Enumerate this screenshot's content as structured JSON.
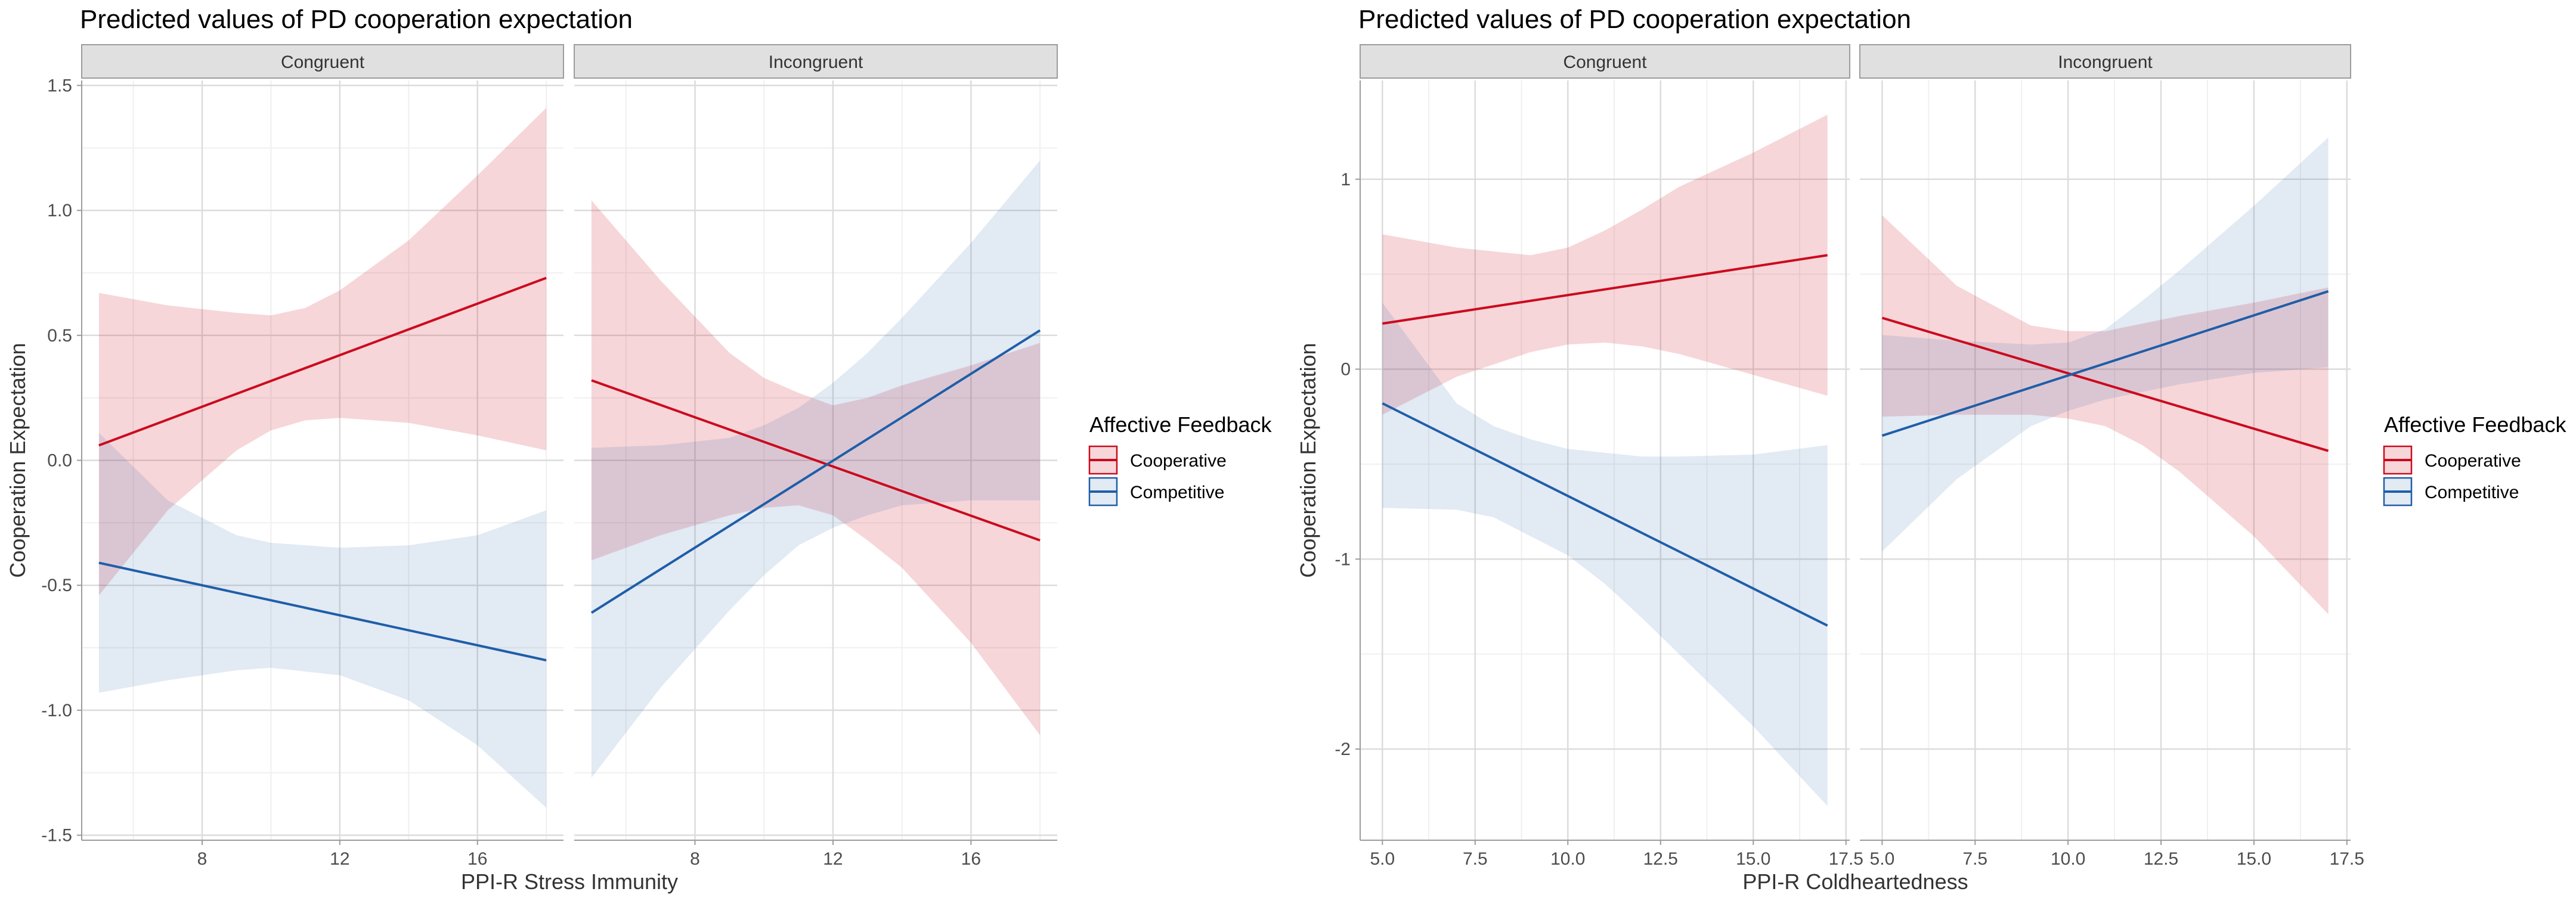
{
  "chart_data": [
    {
      "type": "line",
      "title": "Predicted values of PD cooperation expectation",
      "xlabel": "PPI-R Stress Immunity",
      "ylabel": "Cooperation Expectation",
      "xlim": [
        4.5,
        18.5
      ],
      "ylim": [
        -1.52,
        1.52
      ],
      "xticks": [
        8,
        12,
        16
      ],
      "xtick_labels": [
        "8",
        "12",
        "16"
      ],
      "yticks": [
        -1.5,
        -1.0,
        -0.5,
        0.0,
        0.5,
        1.0,
        1.5
      ],
      "ytick_labels": [
        "-1.5",
        "-1.0",
        "-0.5",
        "0.0",
        "0.5",
        "1.0",
        "1.5"
      ],
      "grid": true,
      "legend": {
        "title": "Affective Feedback",
        "position": "right",
        "entries": [
          "Cooperative",
          "Competitive"
        ]
      },
      "facets": [
        {
          "label": "Congruent",
          "series": [
            {
              "name": "Cooperative",
              "color": "#CC0A1E",
              "x": [
                5,
                18
              ],
              "y": [
                0.06,
                0.73
              ],
              "ci_x": [
                5,
                7,
                9,
                10,
                11,
                12,
                14,
                16,
                18
              ],
              "ci_upper": [
                0.67,
                0.62,
                0.59,
                0.58,
                0.61,
                0.68,
                0.88,
                1.14,
                1.41
              ],
              "ci_lower": [
                -0.54,
                -0.2,
                0.04,
                0.12,
                0.16,
                0.17,
                0.15,
                0.1,
                0.04
              ]
            },
            {
              "name": "Competitive",
              "color": "#1F5EA8",
              "x": [
                5,
                18
              ],
              "y": [
                -0.41,
                -0.8
              ],
              "ci_x": [
                5,
                7,
                9,
                10,
                12,
                14,
                16,
                18
              ],
              "ci_upper": [
                0.11,
                -0.16,
                -0.3,
                -0.33,
                -0.35,
                -0.34,
                -0.3,
                -0.2
              ],
              "ci_lower": [
                -0.93,
                -0.88,
                -0.84,
                -0.83,
                -0.86,
                -0.96,
                -1.14,
                -1.39
              ]
            }
          ]
        },
        {
          "label": "Incongruent",
          "series": [
            {
              "name": "Cooperative",
              "color": "#CC0A1E",
              "x": [
                5,
                18
              ],
              "y": [
                0.32,
                -0.32
              ],
              "ci_x": [
                5,
                7,
                9,
                10,
                11,
                12,
                13,
                14,
                16,
                18
              ],
              "ci_upper": [
                1.04,
                0.72,
                0.43,
                0.33,
                0.27,
                0.22,
                0.25,
                0.3,
                0.38,
                0.47
              ],
              "ci_lower": [
                -0.4,
                -0.3,
                -0.22,
                -0.19,
                -0.18,
                -0.22,
                -0.32,
                -0.43,
                -0.73,
                -1.1
              ]
            },
            {
              "name": "Competitive",
              "color": "#1F5EA8",
              "x": [
                5,
                18
              ],
              "y": [
                -0.61,
                0.52
              ],
              "ci_x": [
                5,
                7,
                9,
                10,
                11,
                12,
                13,
                14,
                16,
                18
              ],
              "ci_upper": [
                0.05,
                0.06,
                0.09,
                0.14,
                0.21,
                0.31,
                0.43,
                0.57,
                0.87,
                1.2
              ],
              "ci_lower": [
                -1.27,
                -0.91,
                -0.6,
                -0.46,
                -0.34,
                -0.27,
                -0.22,
                -0.18,
                -0.16,
                -0.16
              ]
            }
          ]
        }
      ]
    },
    {
      "type": "line",
      "title": "Predicted values of PD cooperation expectation",
      "xlabel": "PPI-R Coldheartedness",
      "ylabel": "Cooperation Expectation",
      "xlim": [
        4.4,
        17.6
      ],
      "ylim": [
        -2.48,
        1.52
      ],
      "xticks": [
        5.0,
        7.5,
        10.0,
        12.5,
        15.0,
        17.5
      ],
      "xtick_labels": [
        "5.0",
        "7.5",
        "10.0",
        "12.5",
        "15.0",
        "17.5"
      ],
      "yticks": [
        -2,
        -1,
        0,
        1
      ],
      "ytick_labels": [
        "-2",
        "-1",
        "0",
        "1"
      ],
      "grid": true,
      "legend": {
        "title": "Affective Feedback",
        "position": "right",
        "entries": [
          "Cooperative",
          "Competitive"
        ]
      },
      "facets": [
        {
          "label": "Congruent",
          "series": [
            {
              "name": "Cooperative",
              "color": "#CC0A1E",
              "x": [
                5,
                17
              ],
              "y": [
                0.24,
                0.6
              ],
              "ci_x": [
                5,
                7,
                9,
                10,
                11,
                12,
                13,
                15,
                17
              ],
              "ci_upper": [
                0.71,
                0.64,
                0.6,
                0.64,
                0.73,
                0.84,
                0.96,
                1.14,
                1.34
              ],
              "ci_lower": [
                -0.24,
                -0.04,
                0.09,
                0.13,
                0.14,
                0.12,
                0.08,
                -0.03,
                -0.14
              ]
            },
            {
              "name": "Competitive",
              "color": "#1F5EA8",
              "x": [
                5,
                17
              ],
              "y": [
                -0.18,
                -1.35
              ],
              "ci_x": [
                5,
                7,
                8,
                9,
                10,
                11,
                12,
                13,
                15,
                17
              ],
              "ci_upper": [
                0.35,
                -0.18,
                -0.3,
                -0.37,
                -0.42,
                -0.44,
                -0.46,
                -0.46,
                -0.45,
                -0.4
              ],
              "ci_lower": [
                -0.73,
                -0.74,
                -0.78,
                -0.88,
                -0.98,
                -1.13,
                -1.31,
                -1.5,
                -1.88,
                -2.3
              ]
            }
          ]
        },
        {
          "label": "Incongruent",
          "series": [
            {
              "name": "Cooperative",
              "color": "#CC0A1E",
              "x": [
                5,
                17
              ],
              "y": [
                0.27,
                -0.43
              ],
              "ci_x": [
                5,
                7,
                9,
                10,
                11,
                12,
                13,
                15,
                17
              ],
              "ci_upper": [
                0.81,
                0.44,
                0.23,
                0.2,
                0.2,
                0.24,
                0.28,
                0.35,
                0.43
              ],
              "ci_lower": [
                -0.25,
                -0.24,
                -0.24,
                -0.26,
                -0.3,
                -0.4,
                -0.54,
                -0.88,
                -1.29
              ]
            },
            {
              "name": "Competitive",
              "color": "#1F5EA8",
              "x": [
                5,
                17
              ],
              "y": [
                -0.35,
                0.41
              ],
              "ci_x": [
                5,
                7,
                9,
                10,
                11,
                12,
                13,
                15,
                17
              ],
              "ci_upper": [
                0.18,
                0.15,
                0.13,
                0.14,
                0.21,
                0.36,
                0.52,
                0.86,
                1.22
              ],
              "ci_lower": [
                -0.96,
                -0.58,
                -0.3,
                -0.22,
                -0.16,
                -0.12,
                -0.08,
                -0.02,
                0.01
              ]
            }
          ]
        }
      ]
    }
  ]
}
